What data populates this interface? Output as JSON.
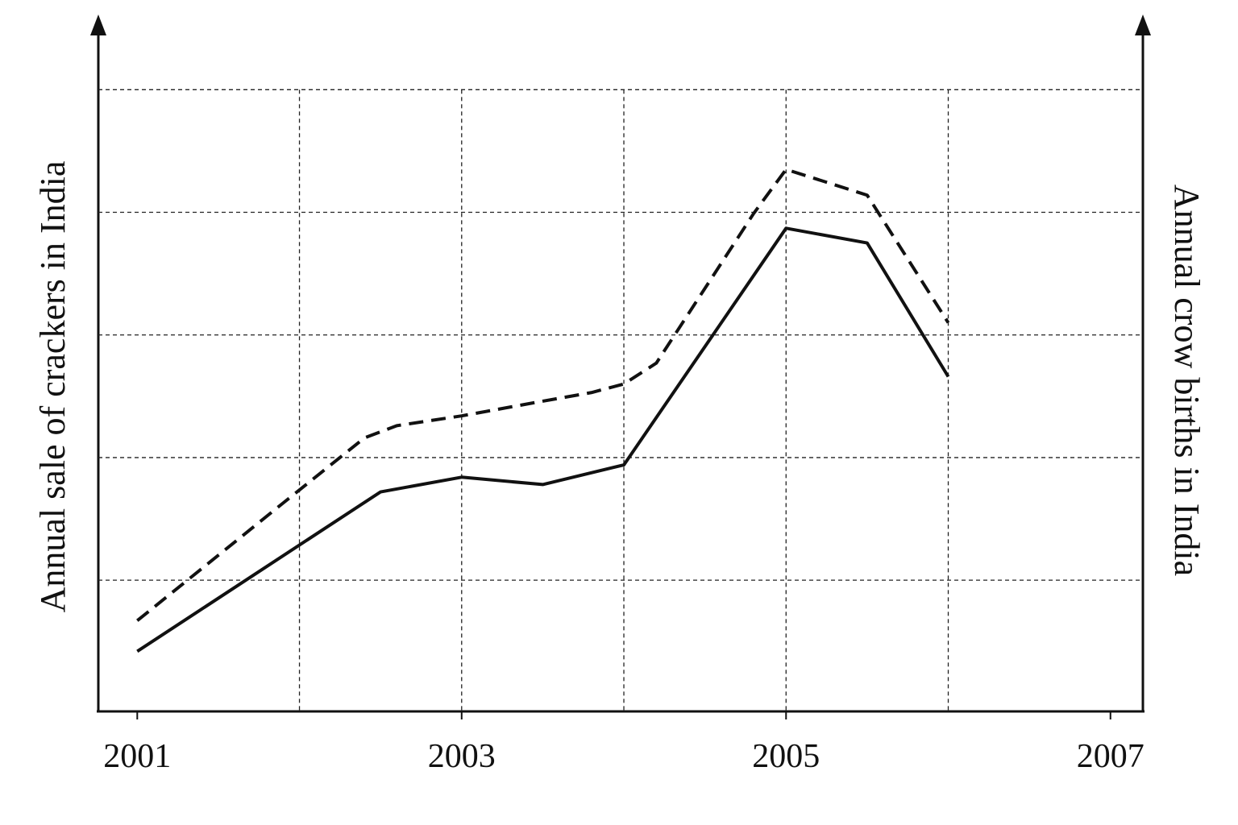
{
  "chart_data": {
    "type": "line",
    "y_label": "Annual sale of crackers in India",
    "y2_label": "Annual crow births in India",
    "xlim": [
      2000.76,
      2007.2
    ],
    "xticks": [
      2001,
      2003,
      2005,
      2007
    ],
    "xgrid": [
      2002,
      2003,
      2004,
      2005,
      2006
    ],
    "ylim": [
      -0.07,
      5.6
    ],
    "ygrid": [
      1,
      2,
      3,
      4,
      5
    ],
    "y2lim": [
      -0.07,
      5.6
    ],
    "grid": true,
    "series": [
      {
        "color": "#111111",
        "style": "solid",
        "x": [
          2001,
          2002.5,
          2003,
          2003.5,
          2004,
          2005,
          2005.5,
          2006
        ],
        "values": [
          0.42,
          1.72,
          1.84,
          1.78,
          1.94,
          3.87,
          3.75,
          2.66
        ]
      },
      {
        "color": "#111111",
        "style": "dashed",
        "axis": "y2",
        "x": [
          2001,
          2001.9,
          2002.4,
          2002.6,
          2003,
          2003.5,
          2003.8,
          2004,
          2004.2,
          2004.8,
          2005,
          2005.5,
          2006
        ],
        "values": [
          0.67,
          1.63,
          2.16,
          2.26,
          2.34,
          2.46,
          2.53,
          2.6,
          2.77,
          3.99,
          4.35,
          4.14,
          3.1
        ]
      }
    ]
  }
}
